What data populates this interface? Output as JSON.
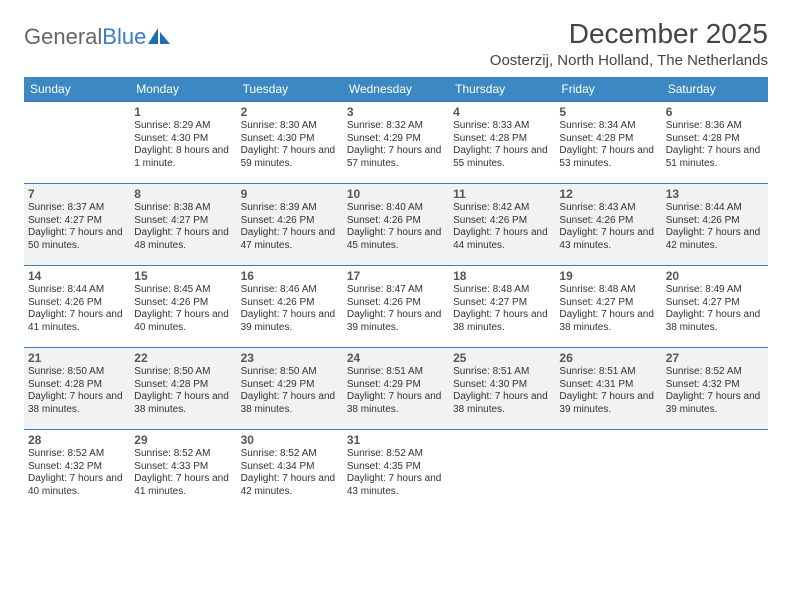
{
  "brand": {
    "part1": "General",
    "part2": "Blue"
  },
  "title": "December 2025",
  "location": "Oosterzij, North Holland, The Netherlands",
  "colors": {
    "header_bg": "#3b88c3",
    "header_text": "#ffffff",
    "border": "#3b7bbf",
    "alt_row": "#f2f2f2",
    "text": "#333333",
    "daynum": "#555555",
    "logo_accent": "#3b7bbf"
  },
  "day_headers": [
    "Sunday",
    "Monday",
    "Tuesday",
    "Wednesday",
    "Thursday",
    "Friday",
    "Saturday"
  ],
  "weeks": [
    [
      null,
      {
        "n": "1",
        "sr": "8:29 AM",
        "ss": "4:30 PM",
        "dl": "8 hours and 1 minute."
      },
      {
        "n": "2",
        "sr": "8:30 AM",
        "ss": "4:30 PM",
        "dl": "7 hours and 59 minutes."
      },
      {
        "n": "3",
        "sr": "8:32 AM",
        "ss": "4:29 PM",
        "dl": "7 hours and 57 minutes."
      },
      {
        "n": "4",
        "sr": "8:33 AM",
        "ss": "4:28 PM",
        "dl": "7 hours and 55 minutes."
      },
      {
        "n": "5",
        "sr": "8:34 AM",
        "ss": "4:28 PM",
        "dl": "7 hours and 53 minutes."
      },
      {
        "n": "6",
        "sr": "8:36 AM",
        "ss": "4:28 PM",
        "dl": "7 hours and 51 minutes."
      }
    ],
    [
      {
        "n": "7",
        "sr": "8:37 AM",
        "ss": "4:27 PM",
        "dl": "7 hours and 50 minutes."
      },
      {
        "n": "8",
        "sr": "8:38 AM",
        "ss": "4:27 PM",
        "dl": "7 hours and 48 minutes."
      },
      {
        "n": "9",
        "sr": "8:39 AM",
        "ss": "4:26 PM",
        "dl": "7 hours and 47 minutes."
      },
      {
        "n": "10",
        "sr": "8:40 AM",
        "ss": "4:26 PM",
        "dl": "7 hours and 45 minutes."
      },
      {
        "n": "11",
        "sr": "8:42 AM",
        "ss": "4:26 PM",
        "dl": "7 hours and 44 minutes."
      },
      {
        "n": "12",
        "sr": "8:43 AM",
        "ss": "4:26 PM",
        "dl": "7 hours and 43 minutes."
      },
      {
        "n": "13",
        "sr": "8:44 AM",
        "ss": "4:26 PM",
        "dl": "7 hours and 42 minutes."
      }
    ],
    [
      {
        "n": "14",
        "sr": "8:44 AM",
        "ss": "4:26 PM",
        "dl": "7 hours and 41 minutes."
      },
      {
        "n": "15",
        "sr": "8:45 AM",
        "ss": "4:26 PM",
        "dl": "7 hours and 40 minutes."
      },
      {
        "n": "16",
        "sr": "8:46 AM",
        "ss": "4:26 PM",
        "dl": "7 hours and 39 minutes."
      },
      {
        "n": "17",
        "sr": "8:47 AM",
        "ss": "4:26 PM",
        "dl": "7 hours and 39 minutes."
      },
      {
        "n": "18",
        "sr": "8:48 AM",
        "ss": "4:27 PM",
        "dl": "7 hours and 38 minutes."
      },
      {
        "n": "19",
        "sr": "8:48 AM",
        "ss": "4:27 PM",
        "dl": "7 hours and 38 minutes."
      },
      {
        "n": "20",
        "sr": "8:49 AM",
        "ss": "4:27 PM",
        "dl": "7 hours and 38 minutes."
      }
    ],
    [
      {
        "n": "21",
        "sr": "8:50 AM",
        "ss": "4:28 PM",
        "dl": "7 hours and 38 minutes."
      },
      {
        "n": "22",
        "sr": "8:50 AM",
        "ss": "4:28 PM",
        "dl": "7 hours and 38 minutes."
      },
      {
        "n": "23",
        "sr": "8:50 AM",
        "ss": "4:29 PM",
        "dl": "7 hours and 38 minutes."
      },
      {
        "n": "24",
        "sr": "8:51 AM",
        "ss": "4:29 PM",
        "dl": "7 hours and 38 minutes."
      },
      {
        "n": "25",
        "sr": "8:51 AM",
        "ss": "4:30 PM",
        "dl": "7 hours and 38 minutes."
      },
      {
        "n": "26",
        "sr": "8:51 AM",
        "ss": "4:31 PM",
        "dl": "7 hours and 39 minutes."
      },
      {
        "n": "27",
        "sr": "8:52 AM",
        "ss": "4:32 PM",
        "dl": "7 hours and 39 minutes."
      }
    ],
    [
      {
        "n": "28",
        "sr": "8:52 AM",
        "ss": "4:32 PM",
        "dl": "7 hours and 40 minutes."
      },
      {
        "n": "29",
        "sr": "8:52 AM",
        "ss": "4:33 PM",
        "dl": "7 hours and 41 minutes."
      },
      {
        "n": "30",
        "sr": "8:52 AM",
        "ss": "4:34 PM",
        "dl": "7 hours and 42 minutes."
      },
      {
        "n": "31",
        "sr": "8:52 AM",
        "ss": "4:35 PM",
        "dl": "7 hours and 43 minutes."
      },
      null,
      null,
      null
    ]
  ],
  "labels": {
    "sunrise": "Sunrise: ",
    "sunset": "Sunset: ",
    "daylight": "Daylight: "
  }
}
